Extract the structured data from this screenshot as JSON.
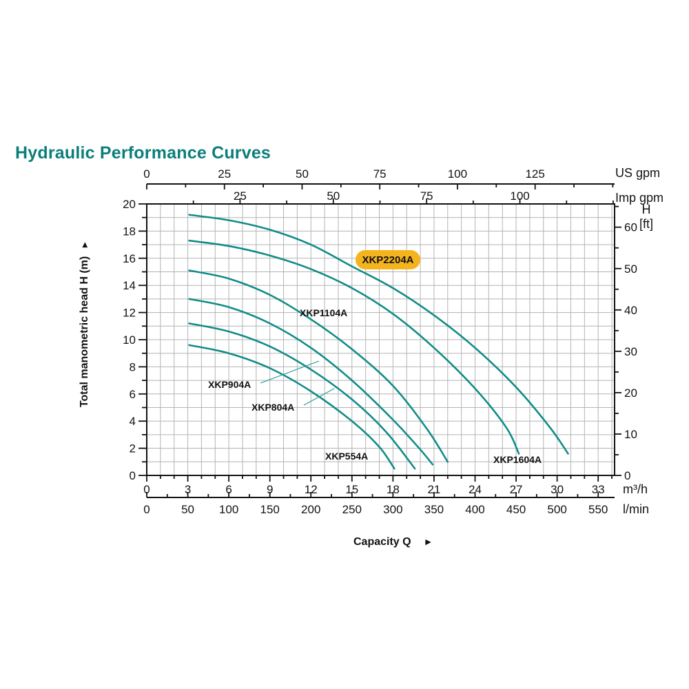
{
  "title": "Hydraulic Performance Curves",
  "colors": {
    "title": "#0B7E7B",
    "curve": "#108C88",
    "leader": "#2A9B96",
    "badge": "#F5B41D",
    "grid": "#B3B3B3",
    "axis": "#111111",
    "text": "#111111",
    "background": "#FFFFFF"
  },
  "chart_data": {
    "type": "line",
    "title": "Hydraulic Performance Curves",
    "xlabel": "Capacity Q",
    "xlabel_arrow": "►",
    "ylabel": "Total manometric head H (m)",
    "ylabel_arrow": "►",
    "grid": true,
    "xlim_m3h": [
      0,
      34.2
    ],
    "ylim_m": [
      0,
      20
    ],
    "x_axes": [
      {
        "id": "us_gpm",
        "unit": "US gpm",
        "major": [
          0,
          25,
          50,
          75,
          100,
          125
        ],
        "minor_step": 12.5,
        "to_m3h": 0.22712
      },
      {
        "id": "imp_gpm",
        "unit": "Imp gpm",
        "major": [
          25,
          50,
          75,
          100
        ],
        "minor_step": 12.5,
        "to_m3h": 0.27277
      },
      {
        "id": "m3h",
        "unit": "m³/h",
        "major": [
          0,
          3,
          6,
          9,
          12,
          15,
          18,
          21,
          24,
          27,
          30,
          33
        ],
        "minor_step": 1,
        "to_m3h": 1
      },
      {
        "id": "lmin",
        "unit": "l/min",
        "major": [
          0,
          50,
          100,
          150,
          200,
          250,
          300,
          350,
          400,
          450,
          500,
          550
        ],
        "minor_step": 25,
        "to_m3h": 0.06
      }
    ],
    "y_axes": [
      {
        "id": "h_m",
        "unit": "",
        "major": [
          0,
          2,
          4,
          6,
          8,
          10,
          12,
          14,
          16,
          18,
          20
        ],
        "minor_step": 1,
        "to_m": 1
      },
      {
        "id": "h_ft",
        "unit_lines": [
          "H",
          "[ft]"
        ],
        "major": [
          0,
          10,
          20,
          30,
          40,
          50,
          60
        ],
        "minor_step": 5,
        "to_m": 0.3048
      }
    ],
    "highlighted_series": "XKP2204A",
    "series": [
      {
        "name": "XKP2204A",
        "points": [
          [
            3.1,
            19.2
          ],
          [
            6,
            18.8
          ],
          [
            9,
            18.1
          ],
          [
            12,
            17.0
          ],
          [
            15,
            15.4
          ],
          [
            18,
            13.8
          ],
          [
            21,
            11.8
          ],
          [
            24,
            9.4
          ],
          [
            27,
            6.5
          ],
          [
            29.5,
            3.5
          ],
          [
            30.8,
            1.6
          ]
        ]
      },
      {
        "name": "XKP1604A",
        "points": [
          [
            3.1,
            17.3
          ],
          [
            6,
            16.9
          ],
          [
            9,
            16.2
          ],
          [
            12,
            15.2
          ],
          [
            15,
            13.8
          ],
          [
            18,
            11.9
          ],
          [
            21,
            9.4
          ],
          [
            24,
            6.4
          ],
          [
            26.3,
            3.5
          ],
          [
            27.2,
            1.6
          ]
        ]
      },
      {
        "name": "XKP1104A",
        "points": [
          [
            3.1,
            15.1
          ],
          [
            6,
            14.5
          ],
          [
            9,
            13.3
          ],
          [
            12,
            11.5
          ],
          [
            15,
            9.3
          ],
          [
            18,
            6.6
          ],
          [
            20.5,
            3.4
          ],
          [
            22,
            1.0
          ]
        ]
      },
      {
        "name": "XKP904A",
        "points": [
          [
            3.1,
            13.0
          ],
          [
            6,
            12.4
          ],
          [
            9,
            11.2
          ],
          [
            12,
            9.4
          ],
          [
            15,
            7.0
          ],
          [
            18,
            4.1
          ],
          [
            20,
            1.9
          ],
          [
            20.9,
            0.8
          ]
        ]
      },
      {
        "name": "XKP804A",
        "points": [
          [
            3.1,
            11.2
          ],
          [
            6,
            10.6
          ],
          [
            9,
            9.5
          ],
          [
            12,
            7.8
          ],
          [
            15,
            5.6
          ],
          [
            17.5,
            3.2
          ],
          [
            19.6,
            0.5
          ]
        ]
      },
      {
        "name": "XKP554A",
        "points": [
          [
            3.1,
            9.6
          ],
          [
            6,
            9.0
          ],
          [
            9,
            7.9
          ],
          [
            12,
            6.2
          ],
          [
            15,
            4.0
          ],
          [
            17,
            2.1
          ],
          [
            18.1,
            0.5
          ]
        ]
      }
    ]
  }
}
